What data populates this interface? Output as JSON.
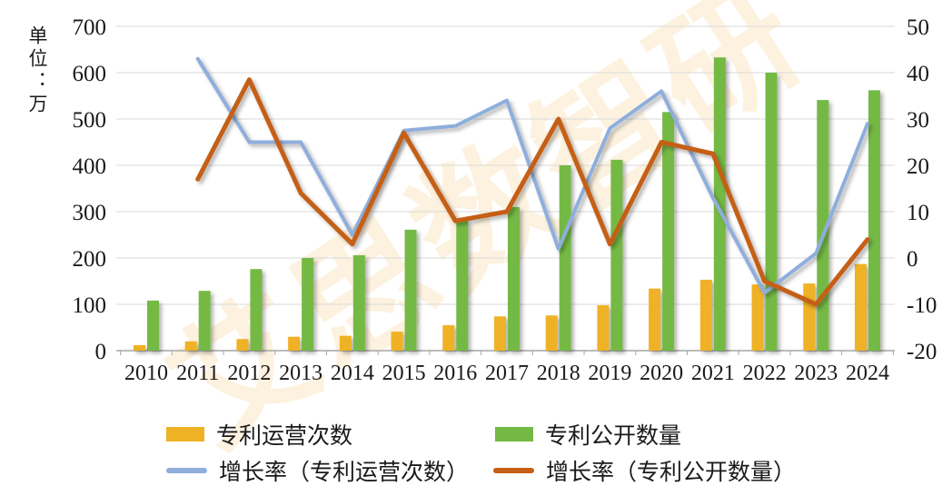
{
  "axis_left": {
    "title": "单位：万",
    "tick_values": [
      0,
      100,
      200,
      300,
      400,
      500,
      600,
      700
    ],
    "min": 0,
    "max": 700,
    "step": 100
  },
  "axis_right": {
    "tick_values": [
      -20,
      -10,
      0,
      10,
      20,
      30,
      40,
      50
    ],
    "min": -20,
    "max": 50,
    "step": 10
  },
  "chart_data": {
    "type": "bar+line combo",
    "categories": [
      "2010",
      "2011",
      "2012",
      "2013",
      "2014",
      "2015",
      "2016",
      "2017",
      "2018",
      "2019",
      "2020",
      "2021",
      "2022",
      "2023",
      "2024"
    ],
    "grid": true,
    "legend_position": "bottom",
    "series": [
      {
        "name": "专利运营次数",
        "type": "bar",
        "axis": "left",
        "color": "#EFB225",
        "values": [
          12,
          20,
          25,
          30,
          32,
          41,
          55,
          74,
          76,
          98,
          134,
          153,
          143,
          145,
          187
        ]
      },
      {
        "name": "专利公开数量",
        "type": "bar",
        "axis": "left",
        "color": "#74B944",
        "values": [
          108,
          129,
          176,
          200,
          206,
          261,
          282,
          310,
          400,
          412,
          515,
          633,
          600,
          541,
          562
        ]
      },
      {
        "name": "增长率（专利运营次数）",
        "type": "line",
        "axis": "right",
        "color": "#8FAEDC",
        "values": [
          null,
          43,
          25,
          25,
          5,
          27.5,
          28.5,
          34,
          2,
          28,
          36,
          13,
          -7.5,
          1,
          29
        ]
      },
      {
        "name": "增长率（专利公开数量）",
        "type": "line",
        "axis": "right",
        "color": "#C55F15",
        "values": [
          null,
          17,
          38.5,
          14,
          3,
          27,
          8,
          10,
          30,
          3,
          25,
          22.5,
          -5,
          -10,
          4
        ]
      }
    ],
    "axis_left_range": [
      0,
      700
    ],
    "axis_right_range": [
      -20,
      50
    ],
    "left_axis_unit_label": "单位：万"
  },
  "colors": {
    "gridline": "#D9D9D9",
    "axis_line": "#A6A6A6",
    "text": "#1a1a1a"
  },
  "watermark": {
    "text": "艾思数智研"
  }
}
